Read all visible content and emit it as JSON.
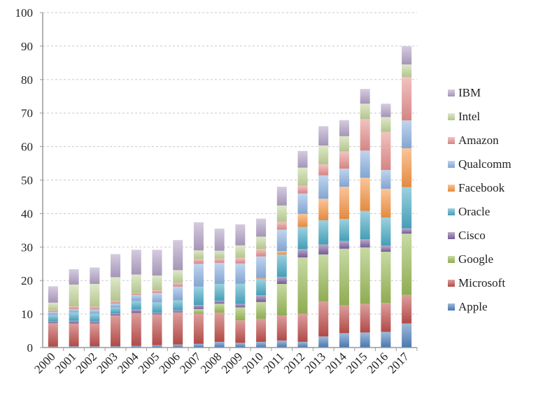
{
  "chart_data": {
    "type": "bar",
    "stacked": true,
    "title": "",
    "xlabel": "",
    "ylabel": "",
    "ylim": [
      0,
      100
    ],
    "yticks": [
      0,
      10,
      20,
      30,
      40,
      50,
      60,
      70,
      80,
      90,
      100
    ],
    "grid": true,
    "legend_position": "right",
    "categories": [
      "2000",
      "2001",
      "2002",
      "2003",
      "2004",
      "2005",
      "2006",
      "2007",
      "2008",
      "2009",
      "2010",
      "2011",
      "2012",
      "2013",
      "2014",
      "2015",
      "2016",
      "2017"
    ],
    "series": [
      {
        "name": "Apple",
        "color": "#4f81bd",
        "values": [
          0.3,
          0.4,
          0.4,
          0.4,
          0.5,
          0.7,
          0.9,
          1.1,
          1.7,
          1.4,
          1.7,
          2.1,
          1.7,
          3.3,
          4.3,
          4.5,
          4.7,
          7.2
        ]
      },
      {
        "name": "Microsoft",
        "color": "#c0504d",
        "values": [
          7.0,
          6.8,
          6.8,
          9.2,
          9.8,
          9.2,
          9.6,
          9.0,
          8.7,
          6.7,
          6.9,
          7.5,
          8.4,
          10.5,
          8.3,
          8.5,
          8.6,
          8.5
        ]
      },
      {
        "name": "Google",
        "color": "#9bbb59",
        "values": [
          0,
          0,
          0,
          0,
          0,
          0,
          0,
          1.4,
          2.7,
          3.9,
          5.0,
          9.4,
          16.8,
          14.0,
          16.9,
          16.9,
          15.3,
          18.3
        ]
      },
      {
        "name": "Cisco",
        "color": "#8064a2",
        "values": [
          0.5,
          0.8,
          0.6,
          0.6,
          1.1,
          0.5,
          0.6,
          1.2,
          0.9,
          1.0,
          2.0,
          2.1,
          2.5,
          3.0,
          2.3,
          2.4,
          1.8,
          1.6
        ]
      },
      {
        "name": "Oracle",
        "color": "#4bacc6",
        "values": [
          2.0,
          2.5,
          2.3,
          1.8,
          2.5,
          3.1,
          3.0,
          5.5,
          5.0,
          6.0,
          4.8,
          6.7,
          6.6,
          7.2,
          6.6,
          8.5,
          8.4,
          12.3
        ]
      },
      {
        "name": "Facebook",
        "color": "#f79646",
        "values": [
          0,
          0,
          0,
          0,
          0,
          0,
          0,
          0,
          0,
          0.1,
          0.3,
          1.0,
          3.9,
          6.4,
          9.6,
          9.9,
          8.6,
          11.6
        ]
      },
      {
        "name": "Qualcomm",
        "color": "#8db3e2",
        "values": [
          0.8,
          1.0,
          1.3,
          1.1,
          1.8,
          2.8,
          4.1,
          6.8,
          6.3,
          6.0,
          6.5,
          6.4,
          6.1,
          7.0,
          5.4,
          8.1,
          5.6,
          8.3
        ]
      },
      {
        "name": "Amazon",
        "color": "#e6918f",
        "values": [
          0.5,
          0.8,
          0.8,
          0.8,
          0.6,
          0.8,
          1.1,
          1.5,
          1.3,
          1.7,
          2.2,
          2.3,
          2.3,
          3.3,
          5.1,
          9.4,
          11.4,
          13.0
        ]
      },
      {
        "name": "Intel",
        "color": "#c3d69b",
        "values": [
          2.3,
          6.5,
          6.8,
          7.1,
          5.5,
          4.4,
          3.8,
          2.5,
          2.3,
          3.7,
          3.7,
          4.9,
          5.4,
          5.6,
          4.6,
          4.6,
          4.4,
          3.7
        ]
      },
      {
        "name": "IBM",
        "color": "#b3a2c7",
        "values": [
          4.9,
          4.6,
          4.9,
          6.9,
          7.4,
          7.7,
          9.0,
          8.4,
          6.6,
          6.3,
          5.4,
          5.6,
          5.0,
          5.8,
          4.8,
          4.4,
          4.0,
          5.5
        ]
      }
    ],
    "legend_order": [
      "IBM",
      "Intel",
      "Amazon",
      "Qualcomm",
      "Facebook",
      "Oracle",
      "Cisco",
      "Google",
      "Microsoft",
      "Apple"
    ]
  }
}
